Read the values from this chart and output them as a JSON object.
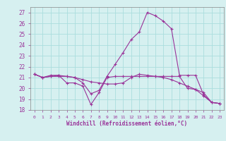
{
  "xlabel": "Windchill (Refroidissement éolien,°C)",
  "ylabel": "",
  "bg_color": "#d6f0f0",
  "grid_color": "#aadddd",
  "line_color": "#993399",
  "x": [
    0,
    1,
    2,
    3,
    4,
    5,
    6,
    7,
    8,
    9,
    10,
    11,
    12,
    13,
    14,
    15,
    16,
    17,
    18,
    19,
    20,
    21,
    22,
    23
  ],
  "line1": [
    21.3,
    21.0,
    21.1,
    21.1,
    21.1,
    21.0,
    20.5,
    19.5,
    19.8,
    21.1,
    22.2,
    23.3,
    24.5,
    25.2,
    27.0,
    26.7,
    26.2,
    25.5,
    21.2,
    21.2,
    21.2,
    19.4,
    18.7,
    18.6
  ],
  "line2": [
    21.3,
    21.0,
    21.2,
    21.2,
    20.5,
    20.5,
    20.2,
    18.5,
    19.6,
    21.0,
    21.1,
    21.1,
    21.1,
    21.1,
    21.1,
    21.1,
    21.1,
    21.1,
    21.1,
    20.0,
    19.9,
    19.3,
    18.7,
    18.6
  ],
  "line3": [
    21.3,
    21.0,
    21.1,
    21.2,
    21.1,
    21.0,
    20.8,
    20.6,
    20.5,
    20.4,
    20.4,
    20.5,
    21.0,
    21.3,
    21.2,
    21.1,
    21.0,
    20.8,
    20.5,
    20.2,
    19.9,
    19.6,
    18.7,
    18.6
  ],
  "ylim": [
    18,
    27.5
  ],
  "yticks": [
    18,
    19,
    20,
    21,
    22,
    23,
    24,
    25,
    26,
    27
  ],
  "xtick_labels": [
    "0",
    "1",
    "2",
    "3",
    "4",
    "5",
    "6",
    "7",
    "8",
    "9",
    "10",
    "11",
    "12",
    "13",
    "14",
    "15",
    "16",
    "17",
    "18",
    "19",
    "20",
    "21",
    "22",
    "23"
  ]
}
